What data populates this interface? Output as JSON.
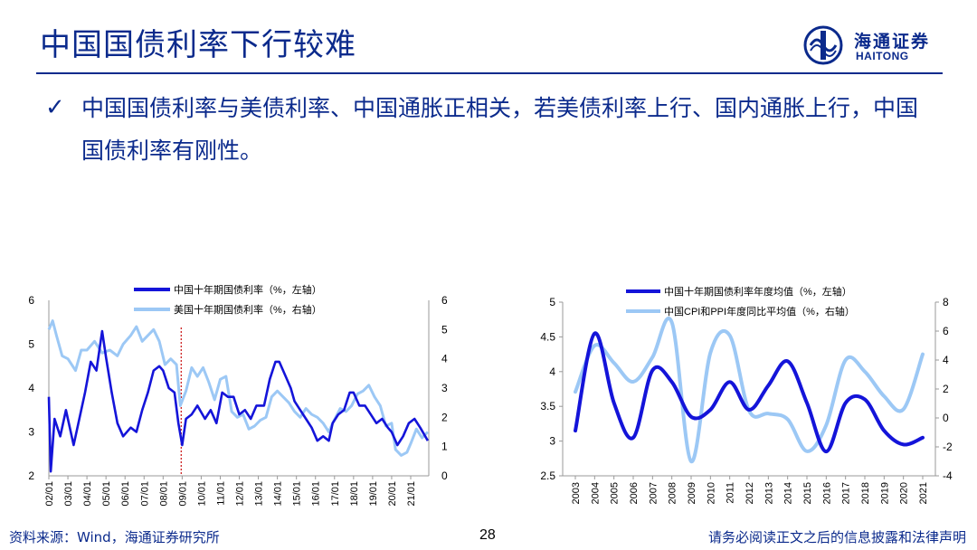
{
  "slide": {
    "title": "中国国债利率下行较难",
    "bullet": "中国国债利率与美债利率、中国通胀正相关，若美债利率上行、国内通胀上行，中国国债利率有刚性。",
    "check_icon": "check-mark-icon"
  },
  "logo": {
    "cn": "海通证券",
    "en": "HAITONG",
    "icon": "haitong-logo-icon"
  },
  "footer": {
    "source": "资料来源：Wind，海通证券研究所",
    "page": "28",
    "disclaimer": "请务必阅读正文之后的信息披露和法律声明"
  },
  "colors": {
    "dark_blue": "#1414d9",
    "light_blue": "#9cc8f5",
    "title_blue": "#0b2a8c",
    "event_line": "#cc2222"
  },
  "chart_data": [
    {
      "type": "line",
      "x_tick_labels": [
        "02/01",
        "03/01",
        "04/01",
        "05/01",
        "06/01",
        "07/01",
        "08/01",
        "09/01",
        "10/01",
        "11/01",
        "12/01",
        "13/01",
        "14/01",
        "15/01",
        "16/01",
        "17/01",
        "18/01",
        "19/01",
        "20/01",
        "21/01"
      ],
      "xlim": [
        2002.0,
        2021.95
      ],
      "left_ylim": [
        2,
        6
      ],
      "left_ticks": [
        2,
        3,
        4,
        5,
        6
      ],
      "right_ylim": [
        0,
        6
      ],
      "right_ticks": [
        0,
        1,
        2,
        3,
        4,
        5,
        6
      ],
      "event_line_x": 2008.95,
      "legend_position": "top-center",
      "series": [
        {
          "name": "中国十年期国债利率（%，左轴）",
          "axis": "left",
          "color": "#1414d9",
          "x": [
            2002.0,
            2002.1,
            2002.3,
            2002.6,
            2002.9,
            2003.3,
            2003.6,
            2003.9,
            2004.2,
            2004.5,
            2004.8,
            2005.0,
            2005.3,
            2005.6,
            2005.9,
            2006.3,
            2006.6,
            2006.9,
            2007.2,
            2007.5,
            2007.8,
            2008.0,
            2008.3,
            2008.6,
            2008.8,
            2009.0,
            2009.2,
            2009.5,
            2009.8,
            2010.2,
            2010.5,
            2010.8,
            2011.1,
            2011.4,
            2011.7,
            2012.0,
            2012.3,
            2012.6,
            2012.9,
            2013.3,
            2013.6,
            2013.9,
            2014.1,
            2014.4,
            2014.7,
            2014.9,
            2015.2,
            2015.5,
            2015.8,
            2016.1,
            2016.4,
            2016.7,
            2016.9,
            2017.2,
            2017.5,
            2017.8,
            2018.0,
            2018.3,
            2018.6,
            2018.9,
            2019.2,
            2019.5,
            2019.8,
            2020.0,
            2020.3,
            2020.6,
            2020.9,
            2021.2,
            2021.5,
            2021.9
          ],
          "y": [
            3.8,
            2.1,
            3.3,
            2.9,
            3.5,
            2.7,
            3.3,
            3.9,
            4.6,
            4.4,
            5.3,
            4.7,
            3.9,
            3.2,
            2.9,
            3.1,
            3.0,
            3.5,
            3.9,
            4.4,
            4.5,
            4.4,
            4.0,
            3.9,
            3.2,
            2.7,
            3.3,
            3.4,
            3.6,
            3.3,
            3.5,
            3.2,
            3.9,
            3.8,
            3.8,
            3.4,
            3.5,
            3.3,
            3.6,
            3.6,
            4.2,
            4.6,
            4.6,
            4.3,
            4.0,
            3.7,
            3.5,
            3.3,
            3.1,
            2.8,
            2.9,
            2.8,
            3.2,
            3.4,
            3.5,
            3.9,
            3.9,
            3.6,
            3.6,
            3.4,
            3.2,
            3.3,
            3.1,
            3.0,
            2.7,
            2.9,
            3.2,
            3.3,
            3.1,
            2.8
          ]
        },
        {
          "name": "美国十年期国债利率（%，右轴）",
          "axis": "right",
          "color": "#9cc8f5",
          "x": [
            2002.0,
            2002.2,
            2002.4,
            2002.7,
            2003.0,
            2003.4,
            2003.7,
            2004.0,
            2004.4,
            2004.8,
            2005.2,
            2005.6,
            2005.9,
            2006.3,
            2006.6,
            2006.9,
            2007.2,
            2007.5,
            2007.8,
            2008.1,
            2008.4,
            2008.7,
            2008.9,
            2009.2,
            2009.5,
            2009.8,
            2010.1,
            2010.4,
            2010.7,
            2011.0,
            2011.3,
            2011.6,
            2011.9,
            2012.2,
            2012.5,
            2012.8,
            2013.1,
            2013.4,
            2013.7,
            2014.0,
            2014.3,
            2014.6,
            2014.9,
            2015.2,
            2015.5,
            2015.8,
            2016.1,
            2016.4,
            2016.7,
            2016.9,
            2017.3,
            2017.6,
            2017.9,
            2018.2,
            2018.5,
            2018.8,
            2019.1,
            2019.4,
            2019.7,
            2020.0,
            2020.2,
            2020.5,
            2020.8,
            2021.0,
            2021.3,
            2021.6,
            2021.9
          ],
          "y": [
            5.0,
            5.3,
            4.8,
            4.1,
            4.0,
            3.6,
            4.3,
            4.3,
            4.6,
            4.2,
            4.3,
            4.1,
            4.5,
            4.8,
            5.1,
            4.6,
            4.8,
            5.0,
            4.6,
            3.8,
            4.0,
            3.8,
            2.4,
            2.9,
            3.7,
            3.4,
            3.7,
            3.2,
            2.6,
            3.3,
            3.4,
            2.2,
            2.0,
            2.1,
            1.6,
            1.7,
            1.9,
            2.0,
            2.7,
            2.9,
            2.7,
            2.5,
            2.2,
            2.0,
            2.3,
            2.1,
            2.0,
            1.8,
            1.5,
            1.8,
            2.3,
            2.2,
            2.4,
            2.8,
            2.9,
            3.1,
            2.7,
            2.4,
            1.7,
            1.8,
            0.9,
            0.7,
            0.8,
            1.1,
            1.6,
            1.3,
            1.5
          ]
        }
      ]
    },
    {
      "type": "line",
      "x_tick_labels": [
        "2003",
        "2004",
        "2005",
        "2006",
        "2007",
        "2008",
        "2009",
        "2010",
        "2011",
        "2012",
        "2013",
        "2014",
        "2015",
        "2016",
        "2017",
        "2018",
        "2019",
        "2020",
        "2021"
      ],
      "categories": [
        2003,
        2004,
        2005,
        2006,
        2007,
        2008,
        2009,
        2010,
        2011,
        2012,
        2013,
        2014,
        2015,
        2016,
        2017,
        2018,
        2019,
        2020,
        2021
      ],
      "left_ylim": [
        2.5,
        5
      ],
      "left_tick_labels": [
        "2.5",
        "3",
        "3.5",
        "4",
        "4.5",
        "5"
      ],
      "right_ylim": [
        -4,
        8
      ],
      "right_tick_labels": [
        "-4",
        "-2",
        "0",
        "2",
        "4",
        "6",
        "8"
      ],
      "legend_position": "top-center",
      "series": [
        {
          "name": "中国十年期国债利率年度均值（%，左轴）",
          "axis": "left",
          "color": "#1414d9",
          "values": [
            3.15,
            4.55,
            3.55,
            3.05,
            4.02,
            3.85,
            3.35,
            3.45,
            3.85,
            3.45,
            3.8,
            4.15,
            3.55,
            2.85,
            3.55,
            3.6,
            3.15,
            2.95,
            3.05
          ]
        },
        {
          "name": "中国CPI和PPI年度同比平均值（%，右轴）",
          "axis": "right",
          "color": "#9cc8f5",
          "values": [
            1.8,
            5.0,
            3.8,
            2.5,
            4.2,
            6.6,
            -3.0,
            4.5,
            5.7,
            0.5,
            0.3,
            -0.1,
            -2.3,
            -0.5,
            4.0,
            3.2,
            1.5,
            0.6,
            4.4
          ]
        }
      ]
    }
  ]
}
